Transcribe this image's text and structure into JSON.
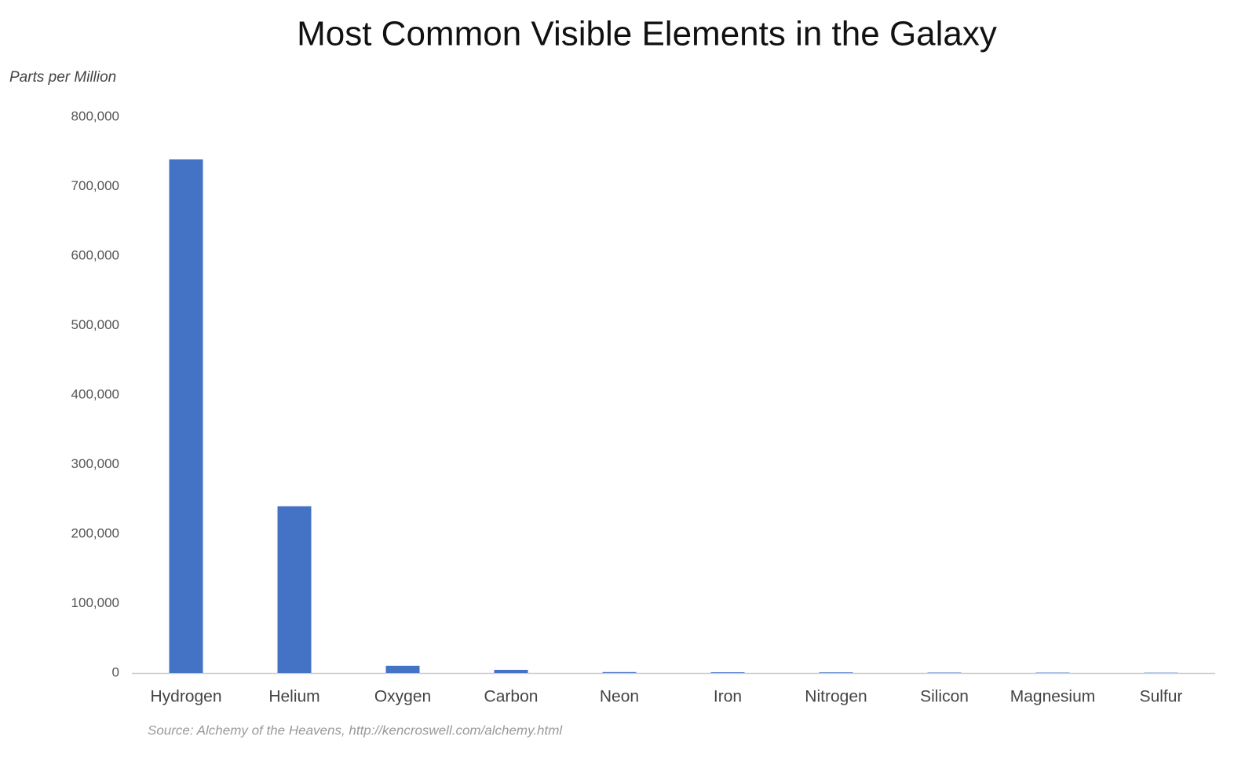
{
  "chart_data": {
    "type": "bar",
    "title": "Most Common Visible Elements in the Galaxy",
    "y_label": "Parts per Million",
    "source": "Source: Alchemy of the Heavens, http://kencroswell.com/alchemy.html",
    "categories": [
      "Hydrogen",
      "Helium",
      "Oxygen",
      "Carbon",
      "Neon",
      "Iron",
      "Nitrogen",
      "Silicon",
      "Magnesium",
      "Sulfur"
    ],
    "values": [
      739000,
      240000,
      10400,
      4600,
      1340,
      1090,
      960,
      650,
      580,
      440
    ],
    "color": "#4472c4",
    "ylim": [
      0,
      800000
    ],
    "yticks": [
      0,
      {
        "value": 100000,
        "label": "100,000"
      },
      {
        "value": 200000,
        "label": "200,000"
      },
      {
        "value": 300000,
        "label": "300,000"
      },
      {
        "value": 400000,
        "label": "400,000"
      },
      {
        "value": 500000,
        "label": "500,000"
      },
      {
        "value": 600000,
        "label": "600,000"
      },
      {
        "value": 700000,
        "label": "700,000"
      },
      {
        "value": 800000,
        "label": "800,000"
      }
    ],
    "grid": false
  }
}
